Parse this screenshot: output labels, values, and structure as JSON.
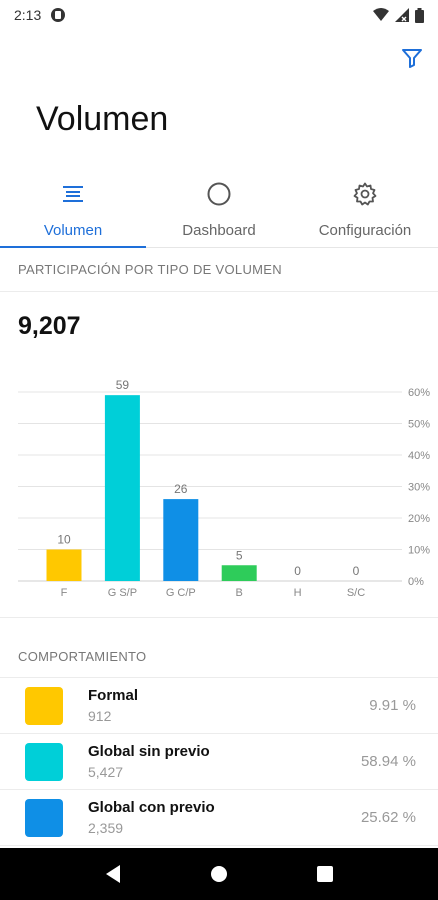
{
  "status": {
    "time": "2:13"
  },
  "header": {
    "title": "Volumen"
  },
  "tabs": [
    {
      "label": "Volumen",
      "icon": "list-lines-icon",
      "active": true
    },
    {
      "label": "Dashboard",
      "icon": "circle-icon",
      "active": false
    },
    {
      "label": "Configuración",
      "icon": "gear-icon",
      "active": false
    }
  ],
  "section1": {
    "title": "PARTICIPACIÓN POR TIPO DE VOLUMEN"
  },
  "total": "9,207",
  "chart_data": {
    "type": "bar",
    "categories": [
      "F",
      "G S/P",
      "G C/P",
      "B",
      "H",
      "S/C"
    ],
    "values": [
      10,
      59,
      26,
      5,
      0,
      0
    ],
    "colors": [
      "#FFC800",
      "#00CFD8",
      "#0F8FE6",
      "#2ECC5A",
      "#999999",
      "#999999"
    ],
    "yticks": [
      "0%",
      "10%",
      "20%",
      "30%",
      "40%",
      "50%",
      "60%"
    ],
    "ylim": [
      0,
      60
    ],
    "grid": true
  },
  "section2": {
    "title": "COMPORTAMIENTO"
  },
  "list": [
    {
      "name": "Formal",
      "count": "912",
      "pct": "9.91 %",
      "color": "#FFC800"
    },
    {
      "name": "Global sin previo",
      "count": "5,427",
      "pct": "58.94 %",
      "color": "#00CFD8"
    },
    {
      "name": "Global con previo",
      "count": "2,359",
      "pct": "25.62 %",
      "color": "#0F8FE6"
    }
  ]
}
